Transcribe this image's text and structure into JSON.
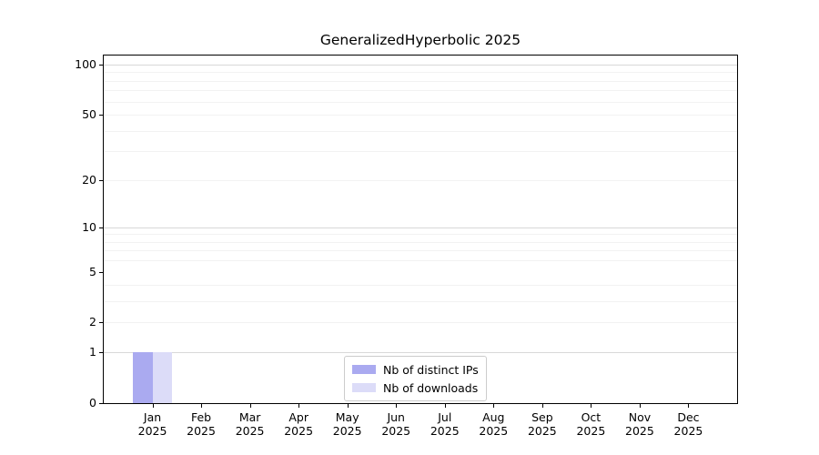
{
  "chart_data": {
    "type": "bar",
    "title": "GeneralizedHyperbolic 2025",
    "categories": [
      "Jan",
      "Feb",
      "Mar",
      "Apr",
      "May",
      "Jun",
      "Jul",
      "Aug",
      "Sep",
      "Oct",
      "Nov",
      "Dec"
    ],
    "tick_year": "2025",
    "series": [
      {
        "name": "Nb of distinct IPs",
        "color": "#aaaaf0",
        "values": [
          1,
          0,
          0,
          0,
          0,
          0,
          0,
          0,
          0,
          0,
          0,
          0
        ]
      },
      {
        "name": "Nb of downloads",
        "color": "#dcdcf8",
        "values": [
          1,
          0,
          0,
          0,
          0,
          0,
          0,
          0,
          0,
          0,
          0,
          0
        ]
      }
    ],
    "yscale": "log1p",
    "ylim": [
      0,
      100
    ],
    "yticks": [
      0,
      1,
      2,
      5,
      10,
      20,
      50,
      100
    ],
    "grid_major": [
      1,
      10,
      100
    ],
    "grid_minor": [
      2,
      3,
      4,
      6,
      7,
      8,
      9,
      20,
      30,
      40,
      50,
      60,
      70,
      80,
      90
    ],
    "grid": "on",
    "legend_position": "lower center",
    "colors": {
      "grid_major": "#d8d8d8",
      "grid_minor": "#f2f2f2",
      "spine": "#000000",
      "text": "#000000"
    }
  }
}
